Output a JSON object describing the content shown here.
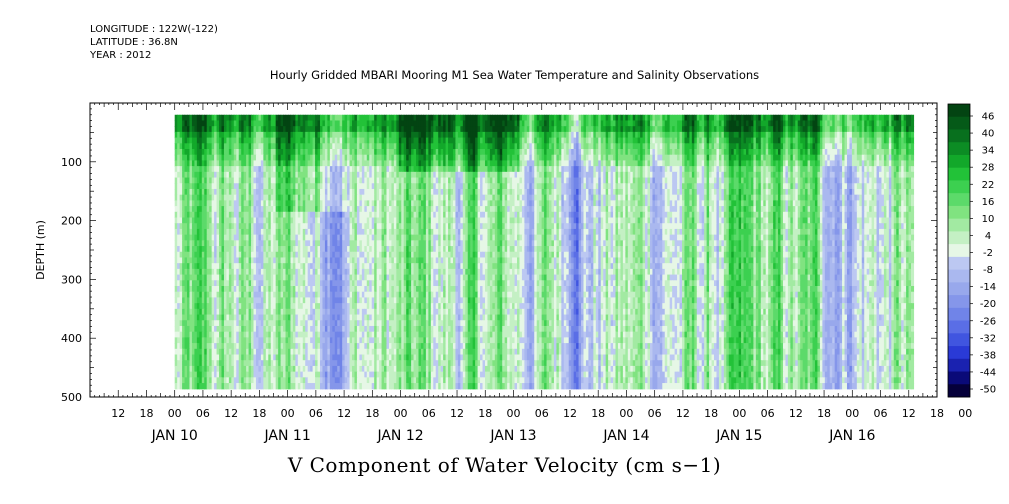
{
  "meta": {
    "longitude": "LONGITUDE : 122W(-122)",
    "latitude": "LATITUDE : 36.8N",
    "year": "YEAR : 2012"
  },
  "title": "Hourly Gridded MBARI Mooring M1 Sea Water Temperature and Salinity Observations",
  "bottom_title": "V Component of Water Velocity (cm s−1)",
  "colors": {
    "ramp": [
      "#05003a",
      "#0a0a78",
      "#1a22b0",
      "#2a3ad6",
      "#4055e0",
      "#5a6ee6",
      "#7084e8",
      "#8596ea",
      "#98a8ec",
      "#aab8ef",
      "#bcc8f2",
      "#e6f7e6",
      "#c4f0c4",
      "#a2eaa2",
      "#80e380",
      "#5cda6a",
      "#3cd050",
      "#22c238",
      "#12a82a",
      "#0c8c24",
      "#08701e",
      "#055a18",
      "#034412"
    ]
  },
  "chart_data": {
    "type": "heatmap",
    "title": "Hourly Gridded MBARI Mooring M1 Sea Water Temperature and Salinity Observations",
    "xlabel": "",
    "ylabel": "DEPTH (m)",
    "ylim": [
      500,
      0
    ],
    "y_ticks": [
      100,
      200,
      300,
      400,
      500
    ],
    "x_range_hours": [
      -18,
      162
    ],
    "x_tick_labels": [
      "12",
      "18",
      "00",
      "06",
      "12",
      "18",
      "00",
      "06",
      "12",
      "18",
      "00",
      "06",
      "12",
      "18",
      "00",
      "06",
      "12",
      "18",
      "00",
      "06",
      "12",
      "18",
      "00",
      "06",
      "12",
      "18",
      "00",
      "06",
      "12",
      "18",
      "00"
    ],
    "day_labels": [
      "JAN 10",
      "JAN 11",
      "JAN 12",
      "JAN 13",
      "JAN 14",
      "JAN 15",
      "JAN 16"
    ],
    "colorbar_labels": [
      "46",
      "40",
      "34",
      "28",
      "22",
      "16",
      "10",
      "4",
      "-2",
      "-8",
      "-14",
      "-20",
      "-26",
      "-32",
      "-38",
      "-44",
      "-50"
    ],
    "value_range": [
      -50,
      49
    ],
    "data_depth_range": [
      20,
      486
    ]
  }
}
